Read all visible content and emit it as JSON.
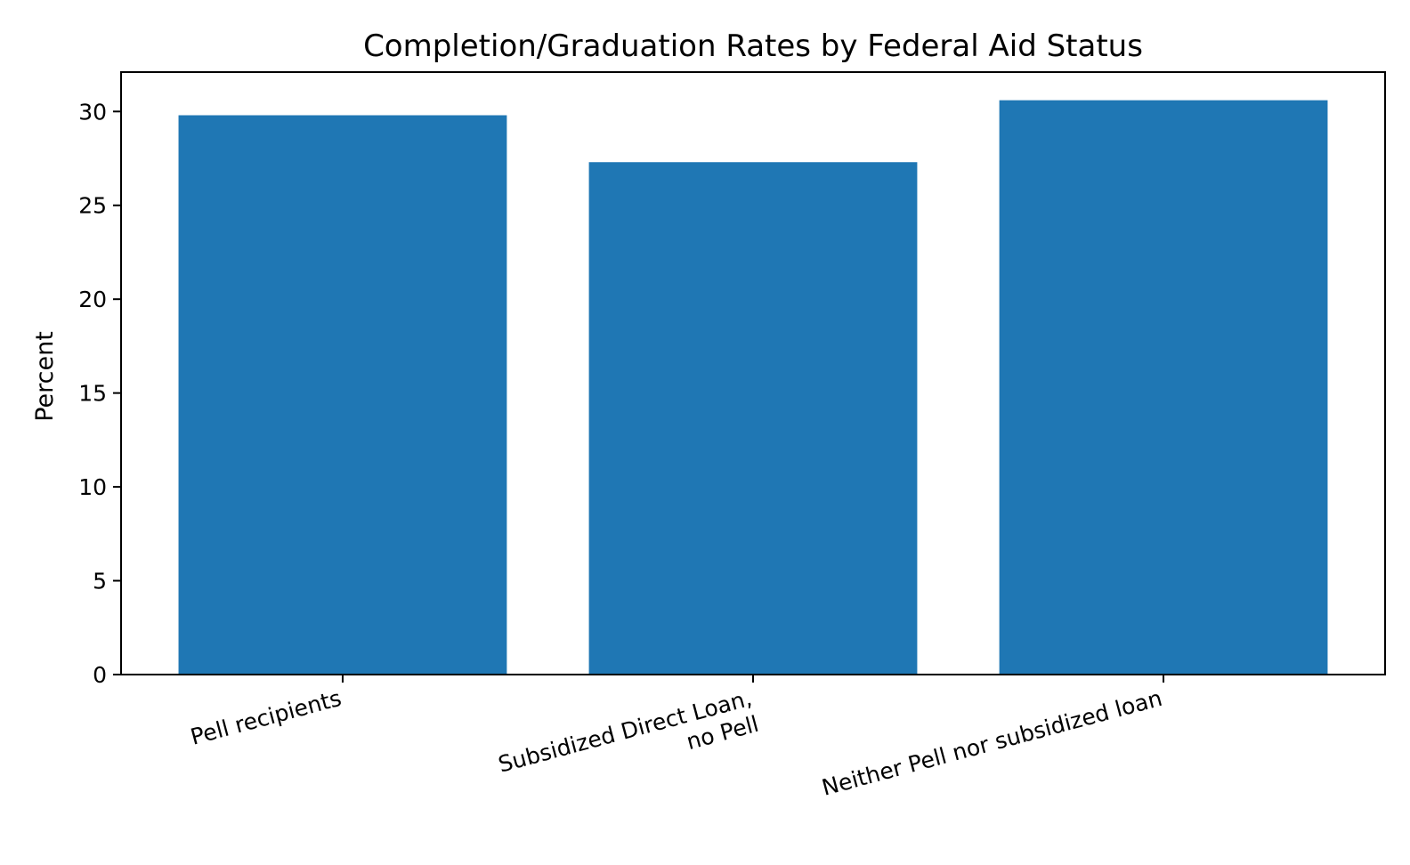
{
  "chart_data": {
    "type": "bar",
    "title": "Completion/Graduation Rates by Federal Aid Status",
    "xlabel": "",
    "ylabel": "Percent",
    "categories": [
      [
        "Pell recipients"
      ],
      [
        "Subsidized Direct Loan,",
        "no Pell"
      ],
      [
        "Neither Pell nor subsidized loan"
      ]
    ],
    "values": [
      29.8,
      27.3,
      30.6
    ],
    "ylim": [
      0,
      32.1
    ],
    "yticks": [
      0,
      5,
      10,
      15,
      20,
      25,
      30
    ],
    "grid": false,
    "legend": "none",
    "bar_color": "#1f77b4",
    "axis_color": "#000000"
  }
}
